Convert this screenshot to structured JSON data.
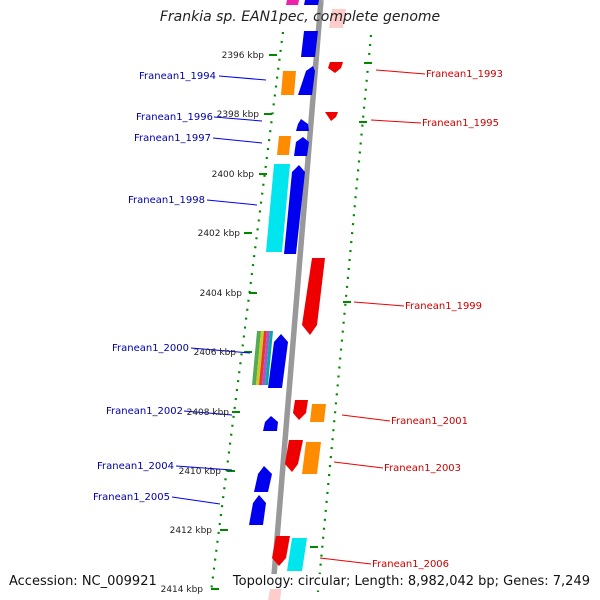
{
  "title": "Frankia sp. EAN1pec, complete genome",
  "footer": {
    "accession": "Accession: NC_009921",
    "info": "Topology: circular; Length: 8,982,042 bp; Genes: 7,249"
  },
  "colors": {
    "blue": "#0000ee",
    "red": "#ee0000",
    "orange": "#ff8c00",
    "cyan": "#00e5ee",
    "backbone": "#999999",
    "dots": "#008800",
    "label_left": "#0000aa",
    "label_right": "#cc0000"
  },
  "kbp_ticks": [
    "2396 kbp",
    "2398 kbp",
    "2400 kbp",
    "2402 kbp",
    "2404 kbp",
    "2406 kbp",
    "2408 kbp",
    "2410 kbp",
    "2412 kbp",
    "2414 kbp"
  ],
  "genes_left": [
    "Franean1_1994",
    "Franean1_1996",
    "Franean1_1997",
    "Franean1_1998",
    "Franean1_2000",
    "Franean1_2002",
    "Franean1_2004",
    "Franean1_2005"
  ],
  "genes_right": [
    "Franean1_1993",
    "Franean1_1995",
    "Franean1_1999",
    "Franean1_2001",
    "Franean1_2003",
    "Franean1_2006"
  ]
}
